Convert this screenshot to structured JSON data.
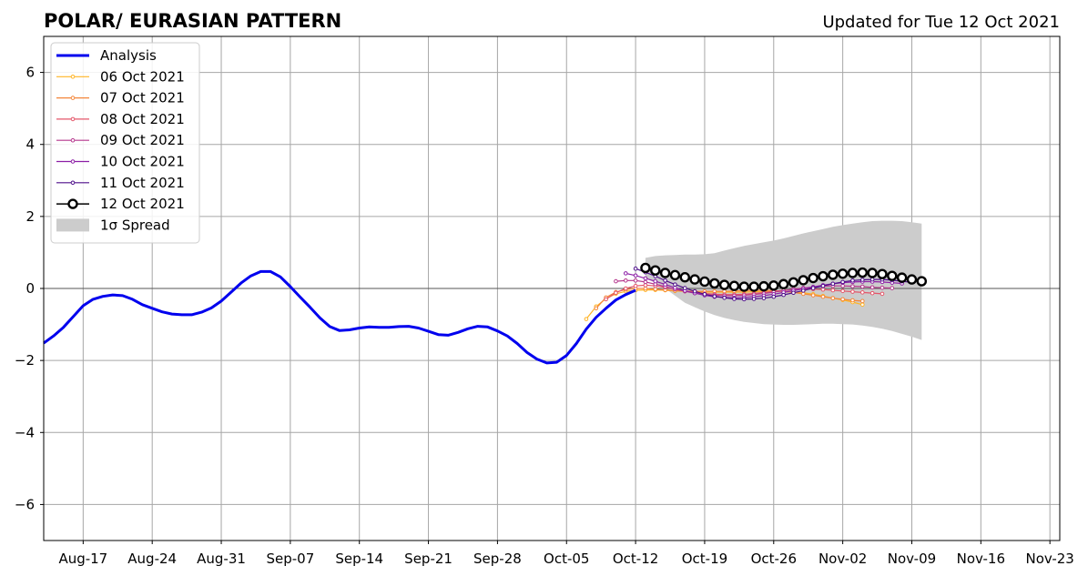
{
  "chart_data": {
    "type": "line",
    "title": "POLAR/ EURASIAN  PATTERN",
    "subtitle": "Updated for Tue 12 Oct 2021",
    "x_unit": "date",
    "xlim": [
      "2021-08-13",
      "2021-11-24"
    ],
    "ylim": [
      -7,
      7
    ],
    "x_ticks": [
      {
        "date": "2021-08-17",
        "label": "Aug-17"
      },
      {
        "date": "2021-08-24",
        "label": "Aug-24"
      },
      {
        "date": "2021-08-31",
        "label": "Aug-31"
      },
      {
        "date": "2021-09-07",
        "label": "Sep-07"
      },
      {
        "date": "2021-09-14",
        "label": "Sep-14"
      },
      {
        "date": "2021-09-21",
        "label": "Sep-21"
      },
      {
        "date": "2021-09-28",
        "label": "Sep-28"
      },
      {
        "date": "2021-10-05",
        "label": "Oct-05"
      },
      {
        "date": "2021-10-12",
        "label": "Oct-12"
      },
      {
        "date": "2021-10-19",
        "label": "Oct-19"
      },
      {
        "date": "2021-10-26",
        "label": "Oct-26"
      },
      {
        "date": "2021-11-02",
        "label": "Nov-02"
      },
      {
        "date": "2021-11-09",
        "label": "Nov-09"
      },
      {
        "date": "2021-11-16",
        "label": "Nov-16"
      },
      {
        "date": "2021-11-23",
        "label": "Nov-23"
      }
    ],
    "y_ticks": [
      {
        "value": 6,
        "label": "6"
      },
      {
        "value": 4,
        "label": "4"
      },
      {
        "value": 2,
        "label": "2"
      },
      {
        "value": 0,
        "label": "0"
      },
      {
        "value": -2,
        "label": "−2"
      },
      {
        "value": -4,
        "label": "−4"
      },
      {
        "value": -6,
        "label": "−6"
      }
    ],
    "grid": true,
    "legend_position": "top-left",
    "analysis": {
      "name": "Analysis",
      "color": "#0000ee",
      "start_date": "2021-08-13",
      "values": [
        -1.52,
        -1.32,
        -1.08,
        -0.78,
        -0.48,
        -0.3,
        -0.22,
        -0.18,
        -0.2,
        -0.3,
        -0.45,
        -0.55,
        -0.65,
        -0.71,
        -0.73,
        -0.73,
        -0.66,
        -0.54,
        -0.35,
        -0.1,
        0.15,
        0.35,
        0.47,
        0.47,
        0.32,
        0.05,
        -0.24,
        -0.52,
        -0.82,
        -1.06,
        -1.17,
        -1.15,
        -1.1,
        -1.07,
        -1.08,
        -1.08,
        -1.06,
        -1.05,
        -1.1,
        -1.19,
        -1.28,
        -1.3,
        -1.22,
        -1.12,
        -1.05,
        -1.07,
        -1.18,
        -1.32,
        -1.53,
        -1.78,
        -1.96,
        -2.07,
        -2.05,
        -1.86,
        -1.53,
        -1.13,
        -0.8,
        -0.55,
        -0.32,
        -0.17,
        -0.05
      ]
    },
    "forecasts": [
      {
        "name": "06 Oct 2021",
        "color": "#ffb425",
        "start_date": "2021-10-07",
        "values": [
          -0.85,
          -0.5,
          -0.28,
          -0.15,
          -0.08,
          -0.05,
          -0.04,
          -0.04,
          -0.05,
          -0.07,
          -0.08,
          -0.09,
          -0.1,
          -0.1,
          -0.1,
          -0.1,
          -0.1,
          -0.09,
          -0.08,
          -0.08,
          -0.08,
          -0.1,
          -0.12,
          -0.16,
          -0.21,
          -0.27,
          -0.32,
          -0.38,
          -0.45
        ]
      },
      {
        "name": "07 Oct 2021",
        "color": "#f4863a",
        "start_date": "2021-10-08",
        "values": [
          -0.55,
          -0.25,
          -0.1,
          -0.03,
          0.0,
          0.0,
          -0.02,
          -0.04,
          -0.06,
          -0.07,
          -0.08,
          -0.08,
          -0.08,
          -0.08,
          -0.07,
          -0.06,
          -0.05,
          -0.05,
          -0.06,
          -0.08,
          -0.11,
          -0.15,
          -0.19,
          -0.23,
          -0.27,
          -0.3,
          -0.33,
          -0.35
        ]
      },
      {
        "name": "08 Oct 2021",
        "color": "#e4566a",
        "start_date": "2021-10-09",
        "values": [
          -0.3,
          -0.12,
          0.0,
          0.07,
          0.09,
          0.07,
          0.03,
          -0.02,
          -0.07,
          -0.11,
          -0.14,
          -0.16,
          -0.17,
          -0.17,
          -0.16,
          -0.14,
          -0.11,
          -0.08,
          -0.05,
          -0.03,
          -0.02,
          -0.02,
          -0.03,
          -0.05,
          -0.07,
          -0.09,
          -0.11,
          -0.13,
          -0.15
        ]
      },
      {
        "name": "09 Oct 2021",
        "color": "#b5368d",
        "start_date": "2021-10-10",
        "values": [
          0.2,
          0.22,
          0.22,
          0.18,
          0.12,
          0.05,
          -0.02,
          -0.08,
          -0.13,
          -0.17,
          -0.19,
          -0.2,
          -0.2,
          -0.19,
          -0.17,
          -0.14,
          -0.1,
          -0.06,
          -0.02,
          0.01,
          0.04,
          0.06,
          0.07,
          0.07,
          0.06,
          0.05,
          0.03,
          0.02,
          0.01
        ]
      },
      {
        "name": "10 Oct 2021",
        "color": "#8c1ea6",
        "start_date": "2021-10-11",
        "values": [
          0.42,
          0.36,
          0.28,
          0.2,
          0.11,
          0.02,
          -0.06,
          -0.13,
          -0.19,
          -0.23,
          -0.25,
          -0.26,
          -0.25,
          -0.23,
          -0.2,
          -0.16,
          -0.11,
          -0.06,
          -0.01,
          0.04,
          0.09,
          0.13,
          0.16,
          0.18,
          0.19,
          0.19,
          0.18,
          0.16,
          0.14
        ]
      },
      {
        "name": "11 Oct 2021",
        "color": "#4e0f8a",
        "start_date": "2021-10-12",
        "values": [
          0.55,
          0.45,
          0.34,
          0.22,
          0.11,
          0.01,
          -0.08,
          -0.16,
          -0.22,
          -0.26,
          -0.29,
          -0.3,
          -0.29,
          -0.27,
          -0.23,
          -0.18,
          -0.12,
          -0.06,
          0.01,
          0.07,
          0.13,
          0.18,
          0.22,
          0.24,
          0.25,
          0.25,
          0.23,
          0.2,
          0.17
        ]
      },
      {
        "name": "12 Oct 2021",
        "color": "#000000",
        "start_date": "2021-10-13",
        "values": [
          0.57,
          0.5,
          0.43,
          0.37,
          0.31,
          0.25,
          0.19,
          0.14,
          0.1,
          0.07,
          0.05,
          0.05,
          0.06,
          0.08,
          0.12,
          0.17,
          0.23,
          0.29,
          0.34,
          0.38,
          0.41,
          0.43,
          0.44,
          0.43,
          0.4,
          0.35,
          0.3,
          0.25,
          0.2
        ]
      }
    ],
    "spread": {
      "name": "1σ Spread",
      "color": "#cccccc",
      "start_date": "2021-10-13",
      "upper": [
        0.85,
        0.9,
        0.92,
        0.93,
        0.94,
        0.94,
        0.95,
        0.98,
        1.05,
        1.12,
        1.18,
        1.23,
        1.28,
        1.33,
        1.39,
        1.46,
        1.53,
        1.59,
        1.65,
        1.71,
        1.76,
        1.8,
        1.84,
        1.87,
        1.88,
        1.88,
        1.87,
        1.84,
        1.8
      ],
      "lower": [
        0.3,
        0.15,
        0.0,
        -0.2,
        -0.4,
        -0.52,
        -0.64,
        -0.74,
        -0.82,
        -0.88,
        -0.93,
        -0.96,
        -0.99,
        -1.0,
        -1.01,
        -1.01,
        -1.0,
        -0.99,
        -0.98,
        -0.98,
        -0.99,
        -1.0,
        -1.03,
        -1.07,
        -1.12,
        -1.18,
        -1.26,
        -1.34,
        -1.43
      ]
    },
    "legend_entries": [
      "Analysis",
      "06 Oct 2021",
      "07 Oct 2021",
      "08 Oct 2021",
      "09 Oct 2021",
      "10 Oct 2021",
      "11 Oct 2021",
      "12 Oct 2021",
      "1σ Spread"
    ]
  }
}
